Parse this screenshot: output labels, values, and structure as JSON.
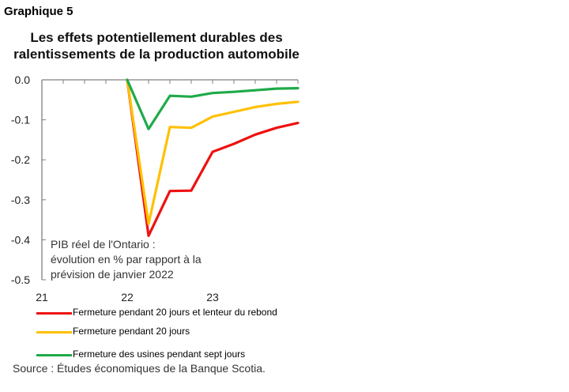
{
  "header": {
    "label": "Graphique 5",
    "title": "Les effets potentiellement durables des ralentissements de la production automobile"
  },
  "chart_data": {
    "type": "line",
    "title": "Les effets potentiellement durables des ralentissements de la production automobile",
    "annotation": "PIB réel de l'Ontario : évolution en % par rapport à la prévision de janvier 2022",
    "ylim": [
      -0.5,
      0.0
    ],
    "xlim": [
      2021,
      2024.0
    ],
    "y_ticks": [
      "0.0",
      "-0.1",
      "-0.2",
      "-0.3",
      "-0.4",
      "-0.5"
    ],
    "y_tick_values": [
      0.0,
      -0.1,
      -0.2,
      -0.3,
      -0.4,
      -0.5
    ],
    "x_ticks": [
      "21",
      "22",
      "23"
    ],
    "x_tick_values": [
      2021,
      2022,
      2023
    ],
    "x": [
      2021.0,
      2021.25,
      2021.5,
      2021.75,
      2022.0,
      2022.25,
      2022.5,
      2022.75,
      2023.0,
      2023.25,
      2023.5,
      2023.75,
      2024.0
    ],
    "grid": false,
    "legend_position": "bottom",
    "series": [
      {
        "name": "Fermeture pendant 20 jours et lenteur du rebond",
        "color": "#ee1111",
        "values": [
          null,
          null,
          null,
          null,
          0.0,
          -0.39,
          -0.278,
          -0.277,
          -0.18,
          -0.16,
          -0.137,
          -0.12,
          -0.108
        ]
      },
      {
        "name": "Fermeture pendant 20 jours",
        "color": "#ffc000",
        "values": [
          null,
          null,
          null,
          null,
          0.0,
          -0.36,
          -0.118,
          -0.12,
          -0.092,
          -0.08,
          -0.068,
          -0.06,
          -0.055
        ]
      },
      {
        "name": "Fermeture des usines pendant sept jours",
        "color": "#1faa4a",
        "values": [
          null,
          null,
          null,
          null,
          0.0,
          -0.123,
          -0.04,
          -0.042,
          -0.033,
          -0.03,
          -0.026,
          -0.022,
          -0.021
        ]
      }
    ]
  },
  "source": "Source : Études économiques de la Banque Scotia."
}
